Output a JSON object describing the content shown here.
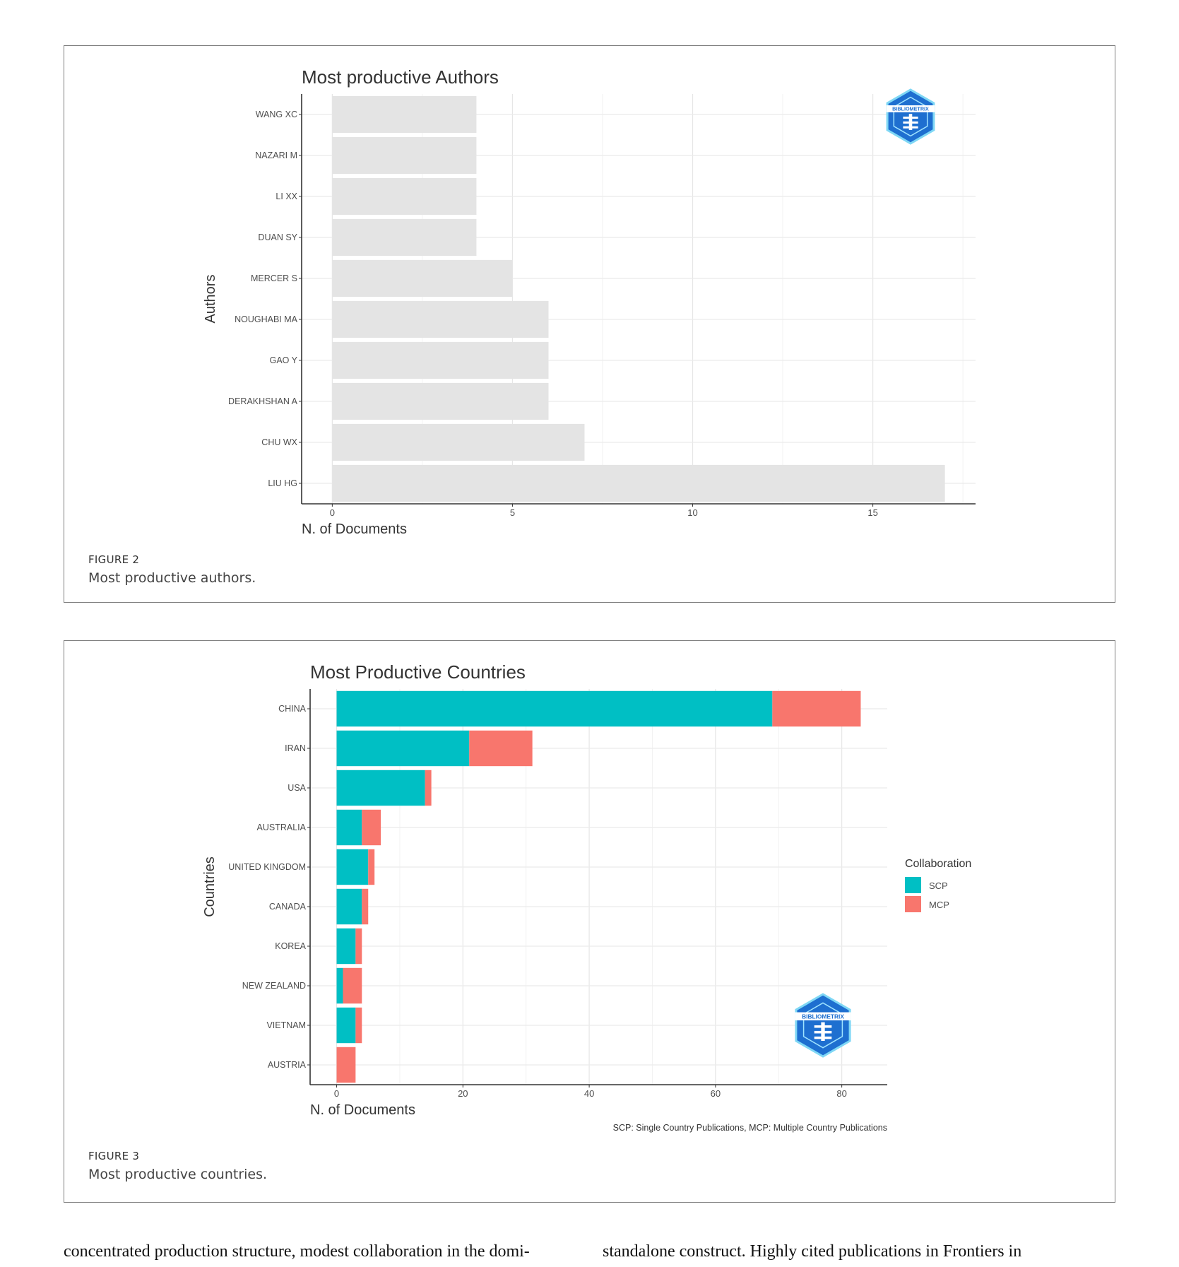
{
  "chart_data": [
    {
      "type": "bar",
      "orientation": "horizontal",
      "title": "Most productive Authors",
      "xlabel": "N. of Documents",
      "ylabel": "Authors",
      "categories": [
        "WANG XC",
        "NAZARI M",
        "LI XX",
        "DUAN SY",
        "MERCER S",
        "NOUGHABI MA",
        "GAO Y",
        "DERAKHSHAN A",
        "CHU WX",
        "LIU HG"
      ],
      "values": [
        4,
        4,
        4,
        4,
        5,
        6,
        6,
        6,
        7,
        17
      ],
      "xlim": [
        -0.85,
        17.85
      ],
      "xticks": [
        0,
        5,
        10,
        15
      ],
      "grid": true,
      "bar_color": "#e4e4e4",
      "logo": "bibliometrix-logo",
      "logo_text": "BIBLIOMETRIX"
    },
    {
      "type": "bar",
      "orientation": "horizontal",
      "stacked": true,
      "title": "Most Productive Countries",
      "xlabel": "N. of Documents",
      "ylabel": "Countries",
      "categories": [
        "CHINA",
        "IRAN",
        "USA",
        "AUSTRALIA",
        "UNITED KINGDOM",
        "CANADA",
        "KOREA",
        "NEW ZEALAND",
        "VIETNAM",
        "AUSTRIA"
      ],
      "series": [
        {
          "name": "SCP",
          "color": "#00bfc4",
          "values": [
            69,
            21,
            14,
            4,
            5,
            4,
            3,
            1,
            3,
            0
          ]
        },
        {
          "name": "MCP",
          "color": "#f8766d",
          "values": [
            14,
            10,
            1,
            3,
            1,
            1,
            1,
            3,
            1,
            3
          ]
        }
      ],
      "xlim": [
        -4.2,
        87.2
      ],
      "xticks": [
        0,
        20,
        40,
        60,
        80
      ],
      "grid": true,
      "legend_title": "Collaboration",
      "legend_position": "right",
      "note": "SCP: Single Country Publications, MCP: Multiple Country Publications",
      "logo": "bibliometrix-logo",
      "logo_text": "BIBLIOMETRIX"
    }
  ],
  "figures": [
    {
      "label": "FIGURE 2",
      "caption": "Most productive authors."
    },
    {
      "label": "FIGURE 3",
      "caption": "Most productive countries."
    }
  ],
  "body_text": {
    "left": "concentrated production structure, modest collaboration in the domi-",
    "right": "standalone construct. Highly cited publications in Frontiers in"
  },
  "colors": {
    "scp": "#00bfc4",
    "mcp": "#f8766d",
    "author_bar": "#e4e4e4",
    "grid": "#ebebeb",
    "figure_border": "#7f7f7f"
  }
}
